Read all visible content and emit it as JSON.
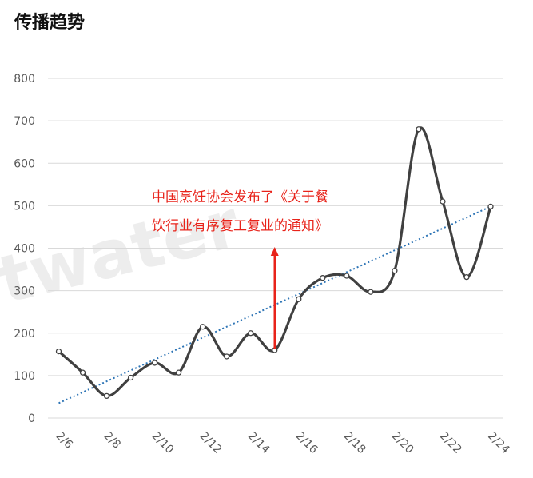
{
  "chart_data": {
    "type": "line",
    "title": "传播趋势",
    "x": [
      "2/6",
      "2/7",
      "2/8",
      "2/9",
      "2/10",
      "2/11",
      "2/12",
      "2/13",
      "2/14",
      "2/15",
      "2/16",
      "2/17",
      "2/18",
      "2/19",
      "2/20",
      "2/21",
      "2/22",
      "2/23",
      "2/24"
    ],
    "x_tick_labels": [
      "2/6",
      "2/8",
      "2/10",
      "2/12",
      "2/14",
      "2/16",
      "2/18",
      "2/20",
      "2/22",
      "2/24"
    ],
    "series": [
      {
        "values": [
          157,
          107,
          52,
          95,
          130,
          107,
          215,
          145,
          200,
          160,
          280,
          330,
          335,
          297,
          347,
          680,
          510,
          332,
          498
        ]
      }
    ],
    "trendline": {
      "type": "linear",
      "start": 35,
      "end": 498
    },
    "ylim": [
      0,
      800
    ],
    "y_ticks": [
      0,
      100,
      200,
      300,
      400,
      500,
      600,
      700,
      800
    ],
    "grid": true,
    "legend": "none",
    "annotation": {
      "x": "2/15",
      "line1": "中国烹饪协会发布了《关于餐",
      "line2": "饮行业有序复工复业的通知》"
    },
    "watermark": "twater",
    "colors": {
      "line": "#404040",
      "trend": "#2e75b6",
      "grid": "#d9d9d9",
      "annotation": "#e8231a",
      "marker_fill": "#ffffff"
    }
  }
}
